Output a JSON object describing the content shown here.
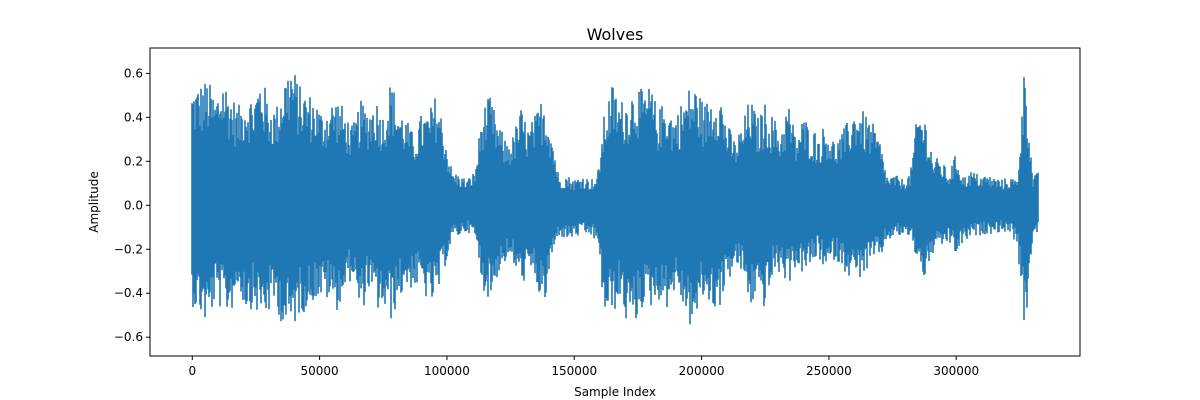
{
  "chart_data": {
    "type": "line",
    "title": "Wolves",
    "xlabel": "Sample Index",
    "ylabel": "Amplitude",
    "xlim": [
      -16600,
      348600
    ],
    "ylim": [
      -0.6855,
      0.7155
    ],
    "x_ticks": [
      0,
      50000,
      100000,
      150000,
      200000,
      250000,
      300000
    ],
    "x_tick_labels": [
      "0",
      "50000",
      "100000",
      "150000",
      "200000",
      "250000",
      "300000"
    ],
    "y_ticks": [
      -0.6,
      -0.4,
      -0.2,
      0.0,
      0.2,
      0.4,
      0.6
    ],
    "y_tick_labels": [
      "−0.6",
      "−0.4",
      "−0.2",
      "0.0",
      "0.2",
      "0.4",
      "0.6"
    ],
    "grid": false,
    "series": [
      {
        "color": "#1f77b4",
        "n_samples": 332000,
        "envelope": {
          "x": [
            0,
            3000,
            6000,
            9000,
            12000,
            15000,
            18000,
            21000,
            24000,
            27000,
            30000,
            33000,
            36000,
            39000,
            42000,
            45000,
            48000,
            51000,
            54000,
            57000,
            60000,
            63000,
            66000,
            69000,
            72000,
            75000,
            78000,
            81000,
            84000,
            87000,
            90000,
            93000,
            96000,
            99000,
            102000,
            105000,
            108000,
            111000,
            114000,
            117000,
            120000,
            123000,
            126000,
            129000,
            132000,
            135000,
            138000,
            141000,
            144000,
            147000,
            150000,
            153000,
            156000,
            159000,
            162000,
            165000,
            168000,
            171000,
            174000,
            177000,
            180000,
            183000,
            186000,
            189000,
            192000,
            195000,
            198000,
            201000,
            204000,
            207000,
            210000,
            213000,
            216000,
            219000,
            222000,
            225000,
            228000,
            231000,
            234000,
            237000,
            240000,
            243000,
            246000,
            249000,
            252000,
            255000,
            258000,
            261000,
            264000,
            267000,
            270000,
            273000,
            276000,
            279000,
            282000,
            285000,
            288000,
            291000,
            294000,
            297000,
            300000,
            303000,
            306000,
            309000,
            312000,
            315000,
            318000,
            321000,
            324000,
            327000,
            330000,
            332000
          ],
          "max": [
            0.55,
            0.56,
            0.58,
            0.5,
            0.6,
            0.52,
            0.45,
            0.52,
            0.5,
            0.61,
            0.48,
            0.45,
            0.6,
            0.66,
            0.55,
            0.52,
            0.5,
            0.43,
            0.48,
            0.5,
            0.43,
            0.36,
            0.48,
            0.45,
            0.5,
            0.42,
            0.58,
            0.46,
            0.4,
            0.32,
            0.42,
            0.43,
            0.52,
            0.35,
            0.16,
            0.14,
            0.12,
            0.16,
            0.45,
            0.5,
            0.38,
            0.3,
            0.32,
            0.45,
            0.36,
            0.42,
            0.52,
            0.36,
            0.13,
            0.14,
            0.12,
            0.14,
            0.12,
            0.13,
            0.44,
            0.56,
            0.48,
            0.5,
            0.56,
            0.52,
            0.55,
            0.43,
            0.5,
            0.41,
            0.47,
            0.54,
            0.55,
            0.46,
            0.52,
            0.54,
            0.38,
            0.3,
            0.37,
            0.5,
            0.4,
            0.47,
            0.41,
            0.35,
            0.48,
            0.32,
            0.41,
            0.36,
            0.33,
            0.38,
            0.3,
            0.33,
            0.4,
            0.47,
            0.42,
            0.38,
            0.3,
            0.13,
            0.14,
            0.12,
            0.15,
            0.45,
            0.4,
            0.22,
            0.21,
            0.15,
            0.24,
            0.13,
            0.16,
            0.14,
            0.14,
            0.13,
            0.12,
            0.13,
            0.12,
            0.68,
            0.13,
            0.15
          ],
          "min": [
            -0.46,
            -0.5,
            -0.56,
            -0.44,
            -0.49,
            -0.5,
            -0.38,
            -0.48,
            -0.47,
            -0.52,
            -0.5,
            -0.46,
            -0.58,
            -0.58,
            -0.5,
            -0.48,
            -0.43,
            -0.43,
            -0.44,
            -0.48,
            -0.4,
            -0.32,
            -0.53,
            -0.38,
            -0.48,
            -0.49,
            -0.53,
            -0.44,
            -0.38,
            -0.38,
            -0.38,
            -0.46,
            -0.44,
            -0.29,
            -0.16,
            -0.14,
            -0.12,
            -0.15,
            -0.38,
            -0.44,
            -0.32,
            -0.26,
            -0.27,
            -0.37,
            -0.32,
            -0.36,
            -0.5,
            -0.26,
            -0.14,
            -0.16,
            -0.15,
            -0.14,
            -0.14,
            -0.17,
            -0.52,
            -0.5,
            -0.44,
            -0.56,
            -0.55,
            -0.46,
            -0.47,
            -0.43,
            -0.48,
            -0.4,
            -0.44,
            -0.56,
            -0.53,
            -0.42,
            -0.48,
            -0.47,
            -0.36,
            -0.29,
            -0.31,
            -0.48,
            -0.4,
            -0.48,
            -0.33,
            -0.31,
            -0.37,
            -0.28,
            -0.32,
            -0.28,
            -0.24,
            -0.32,
            -0.25,
            -0.28,
            -0.33,
            -0.34,
            -0.32,
            -0.26,
            -0.25,
            -0.16,
            -0.15,
            -0.14,
            -0.15,
            -0.27,
            -0.35,
            -0.22,
            -0.2,
            -0.17,
            -0.23,
            -0.17,
            -0.15,
            -0.14,
            -0.13,
            -0.13,
            -0.12,
            -0.13,
            -0.18,
            -0.62,
            -0.14,
            -0.13
          ]
        }
      }
    ]
  }
}
